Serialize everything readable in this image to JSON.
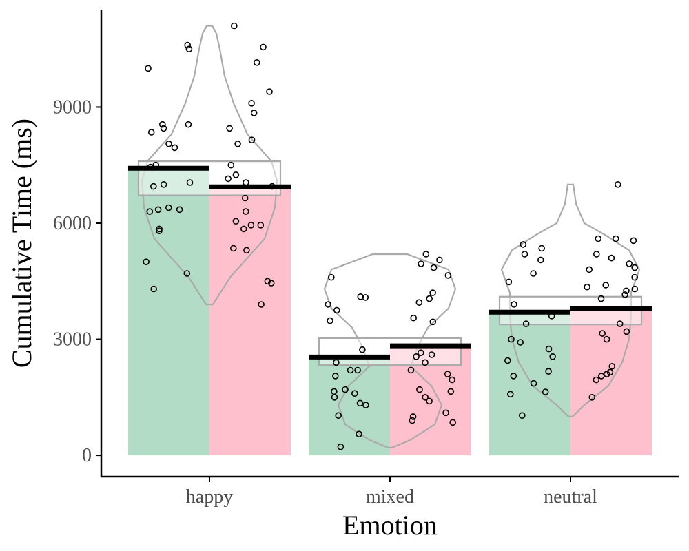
{
  "chart_data": {
    "type": "bar",
    "xlabel": "Emotion",
    "ylabel": "Cumulative Time (ms)",
    "categories": [
      "happy",
      "mixed",
      "neutral"
    ],
    "yticks": [
      0,
      3000,
      6000,
      9000
    ],
    "ylim": [
      -550,
      11500
    ],
    "grid": false,
    "legend": "none",
    "colors": [
      "#b3dcc6",
      "#ffc0cd"
    ],
    "series": [
      {
        "values": [
          7420,
          2540,
          3700
        ],
        "points": [
          [
            10600,
            10500,
            10000,
            8450,
            8550,
            8350,
            8550,
            8050,
            7950,
            7500,
            7450,
            7050,
            7000,
            6950,
            6400,
            6350,
            6300,
            6350,
            5850,
            5800,
            5000,
            4700,
            4300
          ],
          [
            4600,
            4080,
            4100,
            3900,
            3750,
            3480,
            2730,
            2400,
            2200,
            2200,
            2050,
            1700,
            1650,
            1600,
            1500,
            1350,
            1300,
            1030,
            550,
            220
          ],
          [
            5450,
            5350,
            5200,
            5050,
            4700,
            4480,
            3900,
            3600,
            3400,
            3000,
            2920,
            2750,
            2550,
            2450,
            2170,
            2050,
            1860,
            1640,
            1580,
            1030
          ]
        ]
      },
      {
        "values": [
          6940,
          2830,
          3790
        ],
        "points": [
          [
            11100,
            10550,
            10150,
            9400,
            9100,
            8850,
            8450,
            8150,
            8050,
            7500,
            7250,
            7150,
            7050,
            6950,
            6650,
            6300,
            6050,
            5950,
            5950,
            5850,
            5300,
            5350,
            4500,
            4450,
            3900
          ],
          [
            5200,
            5050,
            4950,
            4850,
            4650,
            4200,
            4050,
            3950,
            3550,
            3450,
            2650,
            2600,
            2550,
            2400,
            2200,
            2100,
            1950,
            1700,
            1650,
            1500,
            1400,
            1100,
            1000,
            900,
            850
          ],
          [
            7000,
            5600,
            5550,
            5600,
            5200,
            5100,
            4950,
            4850,
            4800,
            4600,
            4400,
            4350,
            4300,
            4250,
            4150,
            4050,
            3400,
            3200,
            3150,
            3000,
            2300,
            2150,
            2100,
            2050,
            1950,
            1500
          ]
        ]
      }
    ],
    "ci": [
      [
        6720,
        7600
      ],
      [
        2330,
        3030
      ],
      [
        3380,
        4100
      ]
    ],
    "violins": [
      [
        [
          3900,
          0.05
        ],
        [
          4600,
          0.3
        ],
        [
          5600,
          0.8
        ],
        [
          6400,
          0.95
        ],
        [
          7100,
          0.98
        ],
        [
          7600,
          0.9
        ],
        [
          8300,
          0.55
        ],
        [
          9100,
          0.35
        ],
        [
          9800,
          0.22
        ],
        [
          10500,
          0.15
        ],
        [
          10900,
          0.1
        ],
        [
          11100,
          0.04
        ]
      ],
      [
        [
          200,
          0.03
        ],
        [
          400,
          0.3
        ],
        [
          800,
          0.65
        ],
        [
          1300,
          0.75
        ],
        [
          1800,
          0.6
        ],
        [
          2300,
          0.3
        ],
        [
          2800,
          0.4
        ],
        [
          3300,
          0.55
        ],
        [
          3800,
          0.85
        ],
        [
          4300,
          0.95
        ],
        [
          4800,
          0.85
        ],
        [
          5200,
          0.25
        ]
      ],
      [
        [
          1000,
          0.03
        ],
        [
          1300,
          0.2
        ],
        [
          1800,
          0.55
        ],
        [
          2400,
          0.75
        ],
        [
          3000,
          0.85
        ],
        [
          3600,
          0.88
        ],
        [
          4200,
          0.88
        ],
        [
          4800,
          1.0
        ],
        [
          5300,
          0.85
        ],
        [
          5700,
          0.5
        ],
        [
          6000,
          0.2
        ],
        [
          6500,
          0.08
        ],
        [
          7000,
          0.04
        ]
      ]
    ]
  }
}
